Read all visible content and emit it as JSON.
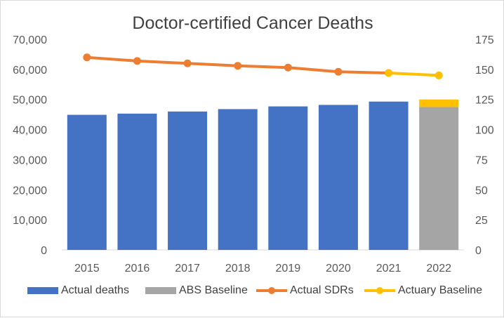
{
  "chart_data": {
    "type": "bar+line",
    "title": "Doctor-certified Cancer Deaths",
    "categories": [
      "2015",
      "2016",
      "2017",
      "2018",
      "2019",
      "2020",
      "2021",
      "2022"
    ],
    "y_left": {
      "min": 0,
      "max": 70000,
      "ticks": [
        "0",
        "10,000",
        "20,000",
        "30,000",
        "40,000",
        "50,000",
        "60,000",
        "70,000"
      ]
    },
    "y_right": {
      "min": 0,
      "max": 175,
      "ticks": [
        "0",
        "25",
        "50",
        "75",
        "100",
        "125",
        "150",
        "175"
      ]
    },
    "grid": false,
    "legend_position": "bottom",
    "series": [
      {
        "name": "Actual deaths",
        "type": "bar",
        "axis": "left",
        "color": "#4472c4",
        "values": [
          44900,
          45300,
          46000,
          46800,
          47700,
          48200,
          49300,
          null
        ]
      },
      {
        "name": "ABS Baseline",
        "type": "bar",
        "axis": "left",
        "color": "#a5a5a5",
        "values": [
          null,
          null,
          null,
          null,
          null,
          null,
          null,
          47500
        ]
      },
      {
        "name": "Actuary Baseline",
        "type": "bar-stack",
        "axis": "left",
        "color": "#ffc000",
        "values": [
          null,
          null,
          null,
          null,
          null,
          null,
          null,
          2500
        ]
      },
      {
        "name": "Actual SDRs",
        "type": "line",
        "axis": "right",
        "color": "#ed7d31",
        "values": [
          160,
          157,
          155,
          153,
          151.5,
          148,
          147,
          null
        ]
      },
      {
        "name": "Actuary Baseline",
        "type": "line",
        "axis": "right",
        "color": "#ffc000",
        "values": [
          null,
          null,
          null,
          null,
          null,
          null,
          147,
          145
        ]
      }
    ]
  },
  "legend": {
    "actual_deaths": "Actual deaths",
    "abs_baseline": "ABS Baseline",
    "actual_sdrs": "Actual SDRs",
    "actuary_baseline": "Actuary Baseline"
  }
}
